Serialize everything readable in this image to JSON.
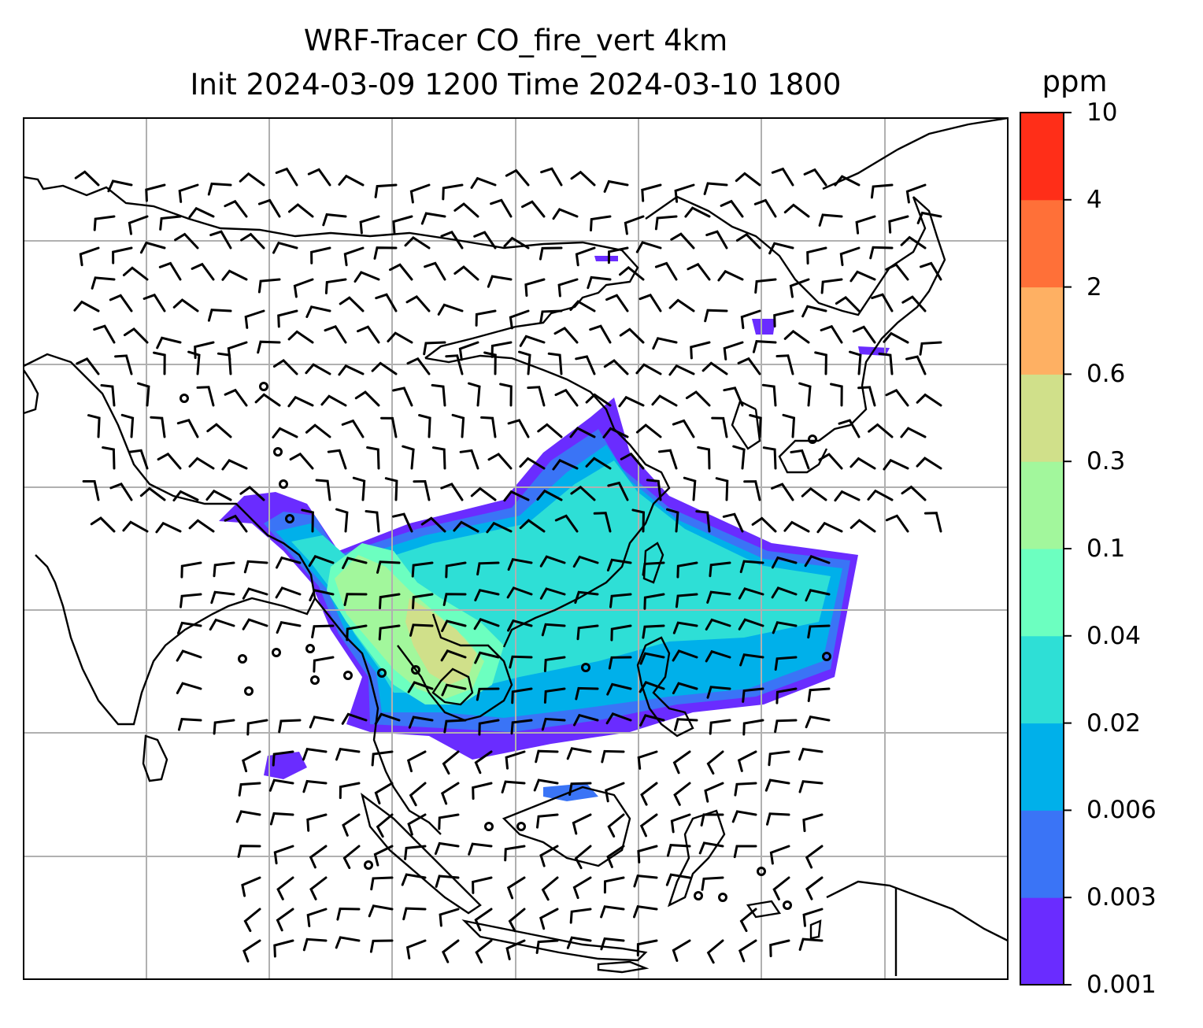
{
  "title": {
    "line1": "WRF-Tracer CO_fire_vert 4km",
    "line2": "Init 2024-03-09 1200 Time 2024-03-10 1800"
  },
  "colorbar": {
    "unit": "ppm",
    "ticks": [
      "0.001",
      "0.003",
      "0.006",
      "0.02",
      "0.04",
      "0.1",
      "0.3",
      "0.6",
      "2",
      "4",
      "10"
    ],
    "colors": [
      "#6a2cff",
      "#3a74f6",
      "#00b0ea",
      "#2edfd6",
      "#6cffc0",
      "#a2f79c",
      "#d0e08a",
      "#feb063",
      "#ff7038",
      "#ff2e18"
    ]
  },
  "map": {
    "gridlines": true,
    "grid_color": "#b0b0b0",
    "coastline_color": "#000000",
    "wind_barb_color": "#000000"
  }
}
